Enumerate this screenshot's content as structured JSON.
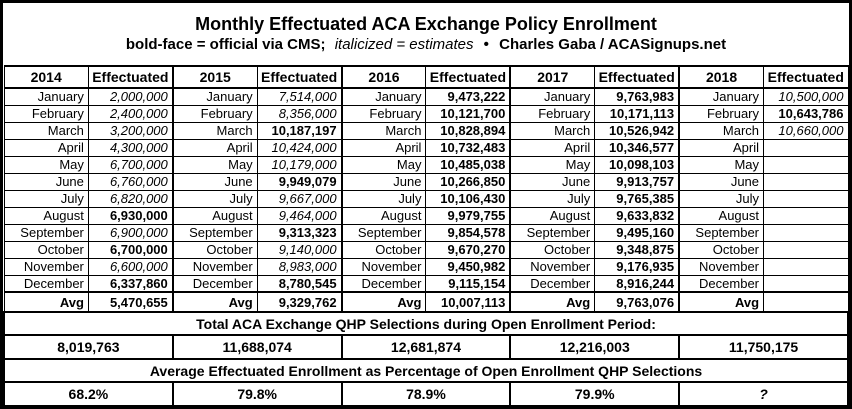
{
  "title": "Monthly Effectuated ACA Exchange Policy Enrollment",
  "subtitle": {
    "bold_note": "bold-face = official via CMS;",
    "italic_note": "italicized = estimates",
    "bullet": "•",
    "credit": "Charles Gaba / ACASignups.net"
  },
  "table": {
    "labels": {
      "effectuated": "Effectuated",
      "avg": "Avg"
    },
    "months": [
      "January",
      "February",
      "March",
      "April",
      "May",
      "June",
      "July",
      "August",
      "September",
      "October",
      "November",
      "December"
    ],
    "qhp_title": "Total ACA Exchange QHP Selections during Open Enrollment Period:",
    "pct_title": "Average Effectuated Enrollment as Percentage of Open Enrollment QHP Selections",
    "years": [
      {
        "year": "2014",
        "values": [
          {
            "v": "2,000,000",
            "style": "estimate"
          },
          {
            "v": "2,400,000",
            "style": "estimate"
          },
          {
            "v": "3,200,000",
            "style": "estimate"
          },
          {
            "v": "4,300,000",
            "style": "estimate"
          },
          {
            "v": "6,700,000",
            "style": "estimate"
          },
          {
            "v": "6,760,000",
            "style": "estimate"
          },
          {
            "v": "6,820,000",
            "style": "estimate"
          },
          {
            "v": "6,930,000",
            "style": "official"
          },
          {
            "v": "6,900,000",
            "style": "estimate"
          },
          {
            "v": "6,700,000",
            "style": "official"
          },
          {
            "v": "6,600,000",
            "style": "estimate"
          },
          {
            "v": "6,337,860",
            "style": "official"
          }
        ],
        "avg": "5,470,655",
        "qhp_total": "8,019,763",
        "pct": "68.2%"
      },
      {
        "year": "2015",
        "values": [
          {
            "v": "7,514,000",
            "style": "estimate"
          },
          {
            "v": "8,356,000",
            "style": "estimate"
          },
          {
            "v": "10,187,197",
            "style": "official"
          },
          {
            "v": "10,424,000",
            "style": "estimate"
          },
          {
            "v": "10,179,000",
            "style": "estimate"
          },
          {
            "v": "9,949,079",
            "style": "official"
          },
          {
            "v": "9,667,000",
            "style": "estimate"
          },
          {
            "v": "9,464,000",
            "style": "estimate"
          },
          {
            "v": "9,313,323",
            "style": "official"
          },
          {
            "v": "9,140,000",
            "style": "estimate"
          },
          {
            "v": "8,983,000",
            "style": "estimate"
          },
          {
            "v": "8,780,545",
            "style": "official"
          }
        ],
        "avg": "9,329,762",
        "qhp_total": "11,688,074",
        "pct": "79.8%"
      },
      {
        "year": "2016",
        "values": [
          {
            "v": "9,473,222",
            "style": "official"
          },
          {
            "v": "10,121,700",
            "style": "official"
          },
          {
            "v": "10,828,894",
            "style": "official"
          },
          {
            "v": "10,732,483",
            "style": "official"
          },
          {
            "v": "10,485,038",
            "style": "official"
          },
          {
            "v": "10,266,850",
            "style": "official"
          },
          {
            "v": "10,106,430",
            "style": "official"
          },
          {
            "v": "9,979,755",
            "style": "official"
          },
          {
            "v": "9,854,578",
            "style": "official"
          },
          {
            "v": "9,670,270",
            "style": "official"
          },
          {
            "v": "9,450,982",
            "style": "official"
          },
          {
            "v": "9,115,154",
            "style": "official"
          }
        ],
        "avg": "10,007,113",
        "qhp_total": "12,681,874",
        "pct": "78.9%"
      },
      {
        "year": "2017",
        "values": [
          {
            "v": "9,763,983",
            "style": "official"
          },
          {
            "v": "10,171,113",
            "style": "official"
          },
          {
            "v": "10,526,942",
            "style": "official"
          },
          {
            "v": "10,346,577",
            "style": "official"
          },
          {
            "v": "10,098,103",
            "style": "official"
          },
          {
            "v": "9,913,757",
            "style": "official"
          },
          {
            "v": "9,765,385",
            "style": "official"
          },
          {
            "v": "9,633,832",
            "style": "official"
          },
          {
            "v": "9,495,160",
            "style": "official"
          },
          {
            "v": "9,348,875",
            "style": "official"
          },
          {
            "v": "9,176,935",
            "style": "official"
          },
          {
            "v": "8,916,244",
            "style": "official"
          }
        ],
        "avg": "9,763,076",
        "qhp_total": "12,216,003",
        "pct": "79.9%"
      },
      {
        "year": "2018",
        "values": [
          {
            "v": "10,500,000",
            "style": "estimate"
          },
          {
            "v": "10,643,786",
            "style": "official"
          },
          {
            "v": "10,660,000",
            "style": "estimate"
          },
          {
            "v": "",
            "style": ""
          },
          {
            "v": "",
            "style": ""
          },
          {
            "v": "",
            "style": ""
          },
          {
            "v": "",
            "style": ""
          },
          {
            "v": "",
            "style": ""
          },
          {
            "v": "",
            "style": ""
          },
          {
            "v": "",
            "style": ""
          },
          {
            "v": "",
            "style": ""
          },
          {
            "v": "",
            "style": ""
          }
        ],
        "avg": "",
        "qhp_total": "11,750,175",
        "pct": "?"
      }
    ]
  },
  "chart_data": {
    "type": "table",
    "title": "Monthly Effectuated ACA Exchange Policy Enrollment",
    "subtitle": "bold-face = official via CMS; italicized = estimates • Charles Gaba / ACASignups.net",
    "columns": [
      "2014",
      "Effectuated",
      "2015",
      "Effectuated",
      "2016",
      "Effectuated",
      "2017",
      "Effectuated",
      "2018",
      "Effectuated"
    ],
    "months": [
      "January",
      "February",
      "March",
      "April",
      "May",
      "June",
      "July",
      "August",
      "September",
      "October",
      "November",
      "December"
    ],
    "series": [
      {
        "name": "2014",
        "monthly_effectuated": [
          2000000,
          2400000,
          3200000,
          4300000,
          6700000,
          6760000,
          6820000,
          6930000,
          6900000,
          6700000,
          6600000,
          6337860
        ],
        "avg": 5470655,
        "qhp_selections": 8019763,
        "pct_of_qhp": 68.2
      },
      {
        "name": "2015",
        "monthly_effectuated": [
          7514000,
          8356000,
          10187197,
          10424000,
          10179000,
          9949079,
          9667000,
          9464000,
          9313323,
          9140000,
          8983000,
          8780545
        ],
        "avg": 9329762,
        "qhp_selections": 11688074,
        "pct_of_qhp": 79.8
      },
      {
        "name": "2016",
        "monthly_effectuated": [
          9473222,
          10121700,
          10828894,
          10732483,
          10485038,
          10266850,
          10106430,
          9979755,
          9854578,
          9670270,
          9450982,
          9115154
        ],
        "avg": 10007113,
        "qhp_selections": 12681874,
        "pct_of_qhp": 78.9
      },
      {
        "name": "2017",
        "monthly_effectuated": [
          9763983,
          10171113,
          10526942,
          10346577,
          10098103,
          9913757,
          9765385,
          9633832,
          9495160,
          9348875,
          9176935,
          8916244
        ],
        "avg": 9763076,
        "qhp_selections": 12216003,
        "pct_of_qhp": 79.9
      },
      {
        "name": "2018",
        "monthly_effectuated": [
          10500000,
          10643786,
          10660000,
          null,
          null,
          null,
          null,
          null,
          null,
          null,
          null,
          null
        ],
        "avg": null,
        "qhp_selections": 11750175,
        "pct_of_qhp": null
      }
    ],
    "notes": {
      "bold_means": "official via CMS",
      "italic_means": "estimates"
    }
  }
}
